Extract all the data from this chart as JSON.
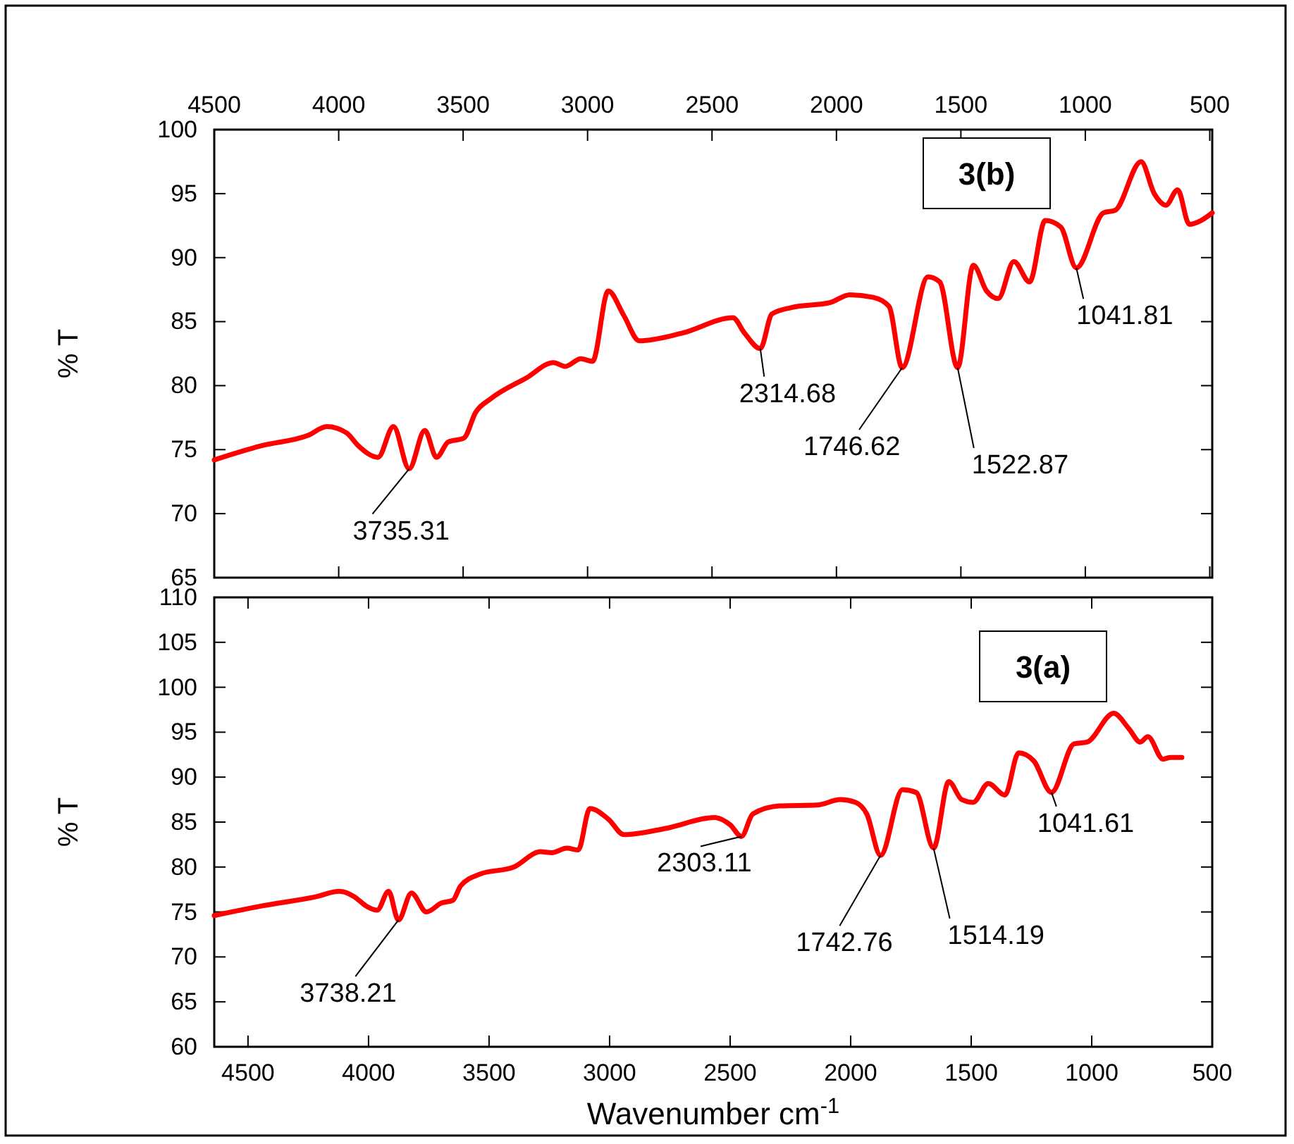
{
  "chart_data": [
    {
      "type": "line",
      "ylabel": "% T",
      "xlim": [
        4500,
        490
      ],
      "xticks": [
        4500,
        4000,
        3500,
        3000,
        2500,
        2000,
        1500,
        1000,
        500
      ],
      "ylim": [
        65,
        100
      ],
      "yticks": [
        65,
        70,
        75,
        80,
        85,
        90,
        95,
        100
      ],
      "grid": false,
      "x": [
        4500,
        4312,
        4125,
        4047,
        3968,
        3921,
        3842,
        3780,
        3717,
        3654,
        3607,
        3560,
        3497,
        3450,
        3387,
        3246,
        3137,
        3090,
        3027,
        2980,
        2917,
        2855,
        2792,
        2620,
        2416,
        2369,
        2306,
        2259,
        2181,
        2024,
        1946,
        1852,
        1789,
        1736,
        1632,
        1585,
        1513,
        1450,
        1397,
        1350,
        1287,
        1224,
        1161,
        1099,
        1036,
        927,
        880,
        776,
        723,
        676,
        629,
        582,
        535,
        490
      ],
      "series": [
        {
          "color": "#ff0000",
          "values": [
            74.2,
            75.3,
            76.1,
            76.8,
            76.3,
            75.3,
            74.4,
            76.8,
            73.5,
            76.5,
            74.4,
            75.6,
            75.9,
            77.9,
            79.0,
            80.6,
            81.8,
            81.5,
            82.1,
            81.9,
            87.4,
            85.5,
            83.5,
            84.1,
            85.3,
            84.1,
            82.9,
            85.6,
            86.1,
            86.5,
            87.1,
            86.9,
            86.2,
            81.4,
            88.5,
            88.1,
            81.4,
            89.4,
            87.4,
            86.8,
            89.7,
            88.1,
            92.9,
            92.4,
            89.2,
            93.5,
            93.7,
            97.5,
            95.0,
            94.1,
            95.3,
            92.6,
            92.9,
            93.5
          ]
        }
      ],
      "annotations": [
        "3(b)",
        {
          "text": "3735.31",
          "x": 3717,
          "y": 73.5
        },
        {
          "text": "2314.68",
          "x": 2306,
          "y": 82.9
        },
        {
          "text": "1746.62",
          "x": 1736,
          "y": 81.4
        },
        {
          "text": "1522.87",
          "x": 1513,
          "y": 81.4
        },
        {
          "text": "1041.81",
          "x": 1036,
          "y": 89.2
        }
      ]
    },
    {
      "type": "line",
      "ylabel": "% T",
      "xlabel": "Wavenumber cm$^{-1}$",
      "xlim": [
        4640,
        500
      ],
      "xticks": [
        4500,
        4000,
        3500,
        3000,
        2500,
        2000,
        1500,
        1000,
        500
      ],
      "ylim": [
        60,
        110
      ],
      "yticks": [
        60,
        65,
        70,
        75,
        80,
        85,
        90,
        95,
        100,
        105,
        110
      ],
      "grid": false,
      "x": [
        4640,
        4437,
        4217,
        4122,
        4059,
        4012,
        3964,
        3917,
        3876,
        3822,
        3760,
        3697,
        3650,
        3618,
        3539,
        3397,
        3287,
        3240,
        3177,
        3130,
        3082,
        3004,
        2941,
        2767,
        2563,
        2500,
        2453,
        2406,
        2295,
        2138,
        2043,
        1980,
        1933,
        1876,
        1785,
        1728,
        1656,
        1593,
        1539,
        1492,
        1429,
        1360,
        1303,
        1240,
        1167,
        1073,
        1019,
        909,
        846,
        799,
        767,
        704,
        673,
        626
      ],
      "series": [
        {
          "color": "#ff0000",
          "values": [
            74.6,
            75.7,
            76.7,
            77.3,
            76.7,
            75.7,
            75.2,
            77.3,
            74.1,
            77.1,
            75.0,
            76.0,
            76.3,
            77.9,
            79.2,
            80.0,
            81.7,
            81.6,
            82.1,
            81.9,
            86.5,
            85.3,
            83.6,
            84.3,
            85.5,
            84.7,
            83.4,
            85.9,
            86.8,
            86.9,
            87.5,
            87.2,
            85.9,
            81.3,
            88.6,
            88.3,
            82.1,
            89.5,
            87.5,
            87.2,
            89.3,
            88.0,
            92.7,
            91.8,
            88.3,
            93.7,
            93.9,
            97.1,
            95.4,
            93.9,
            94.5,
            92.0,
            92.2,
            92.2
          ]
        }
      ],
      "annotations": [
        "3(a)",
        {
          "text": "3738.21",
          "x": 3876,
          "y": 74.1
        },
        {
          "text": "2303.11",
          "x": 2453,
          "y": 83.4
        },
        {
          "text": "1742.76",
          "x": 1876,
          "y": 81.3
        },
        {
          "text": "1514.19",
          "x": 1656,
          "y": 82.1
        },
        {
          "text": "1041.61",
          "x": 1167,
          "y": 88.3
        }
      ]
    }
  ]
}
